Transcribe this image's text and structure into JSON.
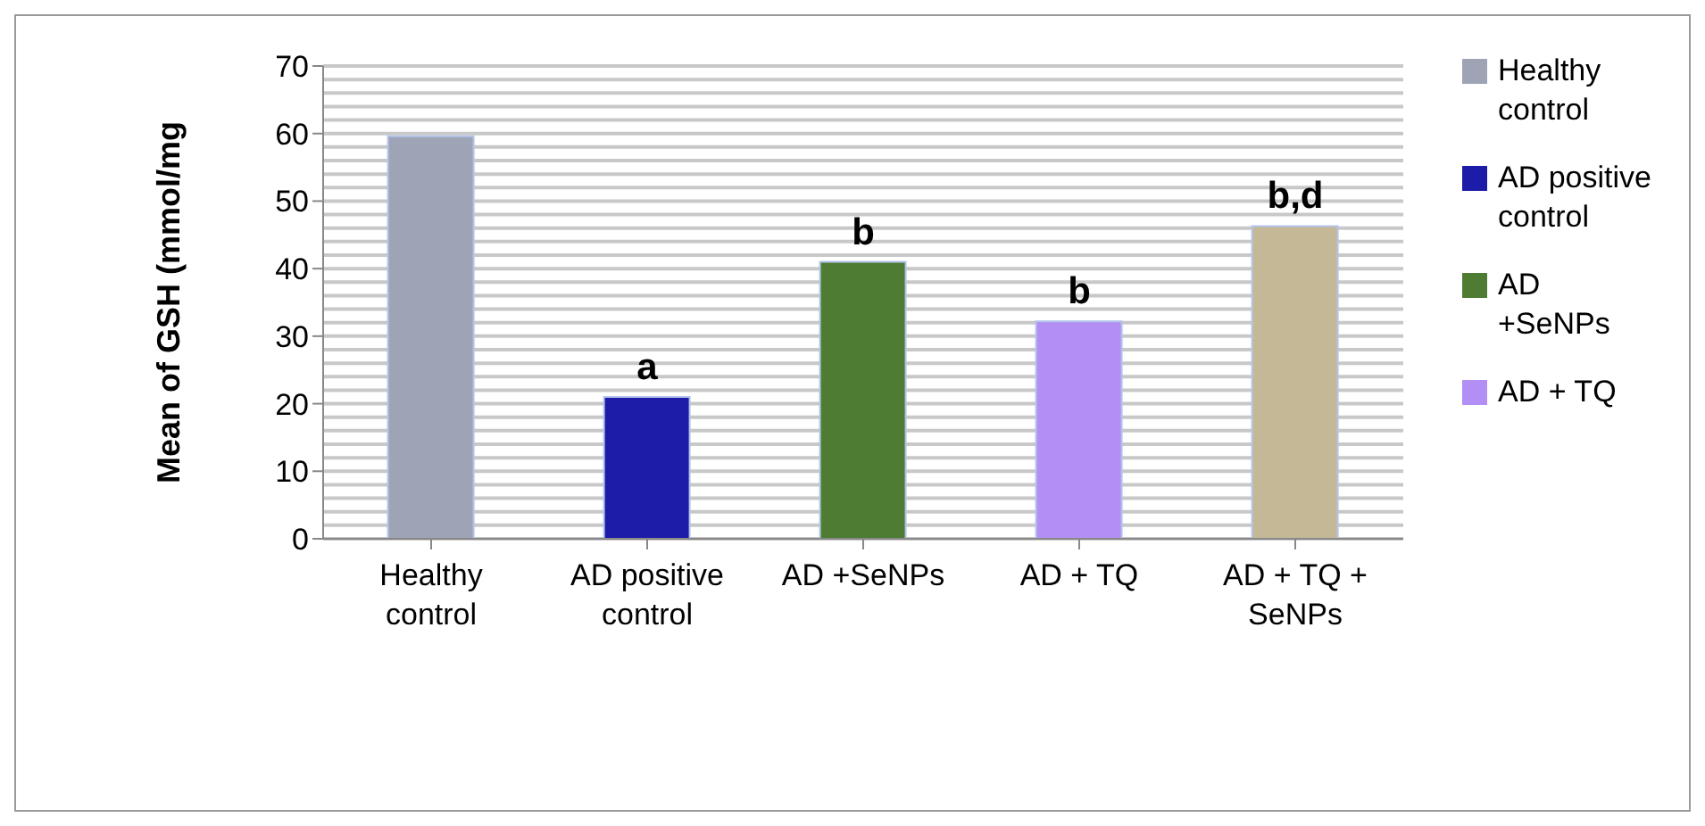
{
  "chart_data": {
    "type": "bar",
    "ylabel": "Mean of GSH (mmol/mg",
    "categories": [
      "Healthy control",
      "AD positive control",
      "AD +SeNPs",
      "AD + TQ",
      "AD + TQ + SeNPs"
    ],
    "stacked": true,
    "series": [
      {
        "name": "Healthy control",
        "color": "#9ea4b6",
        "values": [
          59.6,
          null,
          null,
          null,
          null
        ]
      },
      {
        "name": "AD positive control",
        "color": "#1c1ca8",
        "values": [
          null,
          21,
          null,
          null,
          null
        ]
      },
      {
        "name": "AD +SeNPs",
        "color": "#4e7c32",
        "values": [
          null,
          null,
          41,
          null,
          null
        ]
      },
      {
        "name": "AD + TQ",
        "color": "#b38ef5",
        "values": [
          null,
          null,
          null,
          32.2,
          null
        ]
      },
      {
        "color": "#c4b896",
        "values": [
          null,
          null,
          null,
          null,
          46.3
        ]
      }
    ],
    "ylim": [
      0,
      70
    ],
    "yticks": [
      0,
      {
        "value": 2,
        "label": null
      },
      {
        "value": 4,
        "label": null
      },
      {
        "value": 6,
        "label": null
      },
      {
        "value": 8,
        "label": null
      },
      10,
      {
        "value": 12,
        "label": null
      },
      {
        "value": 14,
        "label": null
      },
      {
        "value": 16,
        "label": null
      },
      {
        "value": 18,
        "label": null
      },
      20,
      {
        "value": 22,
        "label": null
      },
      {
        "value": 24,
        "label": null
      },
      {
        "value": 26,
        "label": null
      },
      {
        "value": 28,
        "label": null
      },
      30,
      {
        "value": 32,
        "label": null
      },
      {
        "value": 34,
        "label": null
      },
      {
        "value": 36,
        "label": null
      },
      {
        "value": 38,
        "label": null
      },
      40,
      {
        "value": 42,
        "label": null
      },
      {
        "value": 44,
        "label": null
      },
      {
        "value": 46,
        "label": null
      },
      {
        "value": 48,
        "label": null
      },
      50,
      {
        "value": 52,
        "label": null
      },
      {
        "value": 54,
        "label": null
      },
      {
        "value": 56,
        "label": null
      },
      {
        "value": 58,
        "label": null
      },
      60,
      {
        "value": 62,
        "label": null
      },
      {
        "value": 64,
        "label": null
      },
      {
        "value": 66,
        "label": null
      },
      {
        "value": 68,
        "label": null
      },
      70
    ],
    "grid": "y",
    "legend": "right",
    "annotations": [
      {
        "text": "a",
        "x": "AD positive control",
        "y": 21
      },
      {
        "text": "b",
        "x": "AD +SeNPs",
        "y": 41
      },
      {
        "text": "b",
        "x": "AD + TQ",
        "y": 32.2
      },
      {
        "text": "b,d",
        "x": "AD + TQ + SeNPs",
        "y": 46.3
      }
    ]
  }
}
